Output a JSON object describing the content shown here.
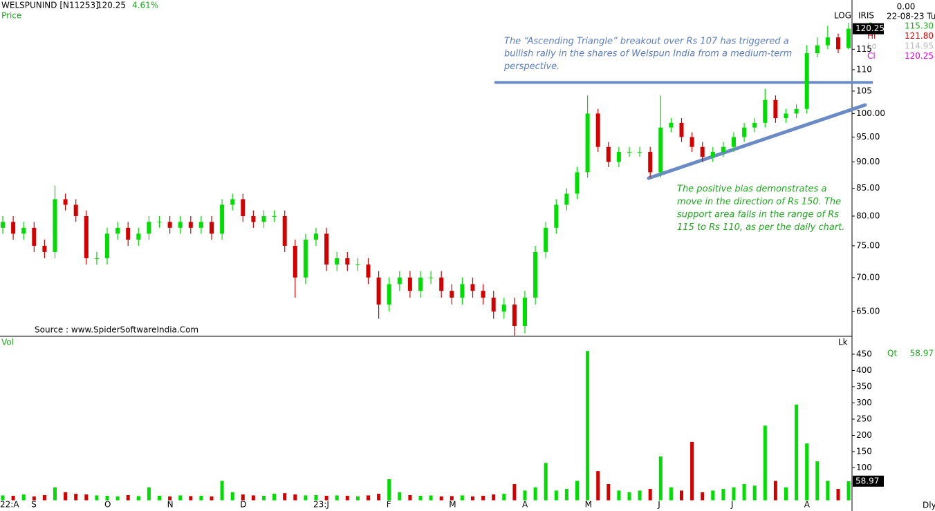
{
  "header": {
    "symbol": "WELSPUNIND [N11253]",
    "last": "120.25",
    "change": "4.61%",
    "panel": "Price",
    "scale": "LOG",
    "indicator": "IRIS",
    "top_value": "0.00",
    "date": "22-08-23 Tu",
    "ohlc": [
      {
        "label": "Op",
        "value": "115.30"
      },
      {
        "label": "Hi",
        "value": "121.80"
      },
      {
        "label": "Lo",
        "value": "114.95"
      },
      {
        "label": "Cl",
        "value": "120.25"
      }
    ]
  },
  "annotations": [
    {
      "lines": [
        "The “Ascending Triangle” breakout over Rs 107 has triggered a",
        "bullish rally in the shares of Welspun India from a medium-term",
        "perspective."
      ]
    },
    {
      "lines": [
        "The positive bias demonstrates a",
        "move in the direction of Rs 150. The",
        "support area falls in the range of Rs",
        "115 to Rs 110, as per the daily chart."
      ]
    }
  ],
  "source": "Source : www.SpiderSoftwareIndia.Com",
  "chart_data": {
    "type": "candlestick",
    "log_scale": true,
    "up_color": "#00dd00",
    "down_color": "#d40000",
    "categories": [
      "22:A",
      null,
      null,
      "S",
      null,
      null,
      null,
      null,
      null,
      null,
      "O",
      null,
      null,
      null,
      null,
      null,
      "N",
      null,
      null,
      null,
      null,
      null,
      null,
      "D",
      null,
      null,
      null,
      null,
      null,
      null,
      "23:J",
      null,
      null,
      null,
      null,
      null,
      null,
      "F",
      null,
      null,
      null,
      null,
      null,
      "M",
      null,
      null,
      null,
      null,
      null,
      null,
      "A",
      null,
      null,
      null,
      null,
      null,
      "M",
      null,
      null,
      null,
      null,
      null,
      null,
      "J",
      null,
      null,
      null,
      null,
      null,
      null,
      "J",
      null,
      null,
      null,
      null,
      null,
      null,
      "A",
      null,
      null,
      null,
      null
    ],
    "open": [
      78,
      79,
      77,
      78,
      75,
      74,
      83,
      82,
      80,
      73,
      73,
      77,
      78,
      76,
      77,
      79,
      79,
      78,
      79,
      78,
      79,
      77,
      82,
      83,
      80,
      79,
      80,
      80,
      75,
      70,
      76,
      77,
      72,
      73,
      72,
      72,
      70,
      66,
      69,
      70,
      68,
      70,
      70,
      68,
      67,
      69,
      68,
      67,
      65,
      66,
      63,
      67,
      74,
      78,
      82,
      84,
      88,
      100,
      93,
      90,
      92,
      92,
      92,
      88,
      97,
      98,
      95,
      93,
      91,
      92,
      93,
      95,
      97,
      98,
      103,
      99,
      100,
      101,
      114,
      116,
      118,
      115.3
    ],
    "high": [
      80,
      80,
      79,
      79,
      76,
      85.5,
      84,
      83,
      81,
      74,
      78,
      79,
      79,
      78,
      80,
      80,
      80,
      80,
      80,
      80,
      80,
      83,
      84,
      84,
      81,
      81,
      81,
      81,
      76,
      77,
      78,
      78,
      74,
      74,
      73,
      73,
      71,
      70,
      71,
      71,
      71,
      71,
      71,
      69,
      70,
      70,
      69,
      68,
      67,
      67,
      68,
      75,
      79,
      83,
      85,
      89,
      104,
      101,
      94,
      93,
      93,
      93,
      93,
      104,
      99,
      99,
      96,
      94,
      93,
      94,
      96,
      98,
      99,
      105.5,
      104,
      101,
      102,
      116,
      118,
      121,
      119,
      121.8
    ],
    "low": [
      77,
      76,
      76,
      74,
      73,
      73,
      81,
      79,
      72,
      72,
      72,
      76,
      75,
      75,
      76,
      78,
      77,
      77,
      77,
      77,
      76,
      76,
      81,
      79,
      78,
      78,
      79,
      74,
      67,
      69,
      75,
      71,
      71,
      71,
      71,
      69,
      64,
      65,
      68,
      67,
      67,
      69,
      67,
      66,
      66,
      67,
      66,
      64,
      64,
      61.7,
      62,
      66,
      73,
      77,
      81,
      83,
      87,
      92,
      89,
      89,
      91,
      91,
      87,
      87,
      96,
      94,
      92,
      90,
      90,
      91,
      92,
      94,
      96,
      97,
      98,
      98,
      99,
      100,
      113,
      115,
      114,
      114.95
    ],
    "close": [
      79,
      77,
      78,
      75,
      74,
      83,
      82,
      80,
      73,
      73,
      77,
      78,
      76,
      77,
      79,
      79,
      78,
      79,
      78,
      79,
      77,
      82,
      83,
      80,
      79,
      80,
      80,
      75,
      70,
      76,
      77,
      72,
      73,
      72,
      72,
      70,
      66,
      69,
      70,
      68,
      70,
      70,
      68,
      67,
      69,
      68,
      67,
      65,
      66,
      63,
      67,
      74,
      78,
      82,
      84,
      88,
      100,
      93,
      90,
      92,
      92,
      92,
      88,
      97,
      98,
      95,
      93,
      91,
      92,
      93,
      95,
      97,
      98,
      103,
      99,
      100,
      101,
      114,
      116,
      118,
      115,
      120.25
    ],
    "volume": [
      15,
      14,
      18,
      12,
      16,
      40,
      25,
      20,
      18,
      15,
      14,
      12,
      16,
      13,
      40,
      14,
      12,
      15,
      13,
      14,
      12,
      60,
      25,
      18,
      15,
      14,
      20,
      22,
      18,
      15,
      16,
      14,
      15,
      14,
      12,
      15,
      20,
      65,
      25,
      16,
      14,
      15,
      12,
      13,
      15,
      12,
      14,
      18,
      20,
      50,
      30,
      40,
      115,
      30,
      35,
      60,
      460,
      90,
      50,
      30,
      25,
      30,
      35,
      135,
      40,
      30,
      180,
      25,
      30,
      35,
      40,
      50,
      45,
      230,
      60,
      40,
      295,
      175,
      120,
      60,
      35,
      58.97
    ],
    "ylim": [
      61.6,
      128
    ],
    "yticks": [
      {
        "value": 65,
        "label": "65.00"
      },
      {
        "value": 70,
        "label": "70.00"
      },
      {
        "value": 75,
        "label": "75.00"
      },
      {
        "value": 80,
        "label": "80.00"
      },
      {
        "value": 85,
        "label": "85.00"
      },
      {
        "value": 90,
        "label": "90.00"
      },
      {
        "value": 95,
        "label": "95.00"
      },
      {
        "value": 100,
        "label": "100.00"
      },
      105,
      110,
      115
    ],
    "resistance": 107,
    "price_tag": "120.25",
    "volume_label": "Vol",
    "volume_unit": "Lk",
    "qt_label": "Qt",
    "qt_value": "58.97",
    "volume_tag": "58.97",
    "vol_ylim": [
      0,
      503
    ],
    "vol_yticks": [
      100,
      150,
      200,
      250,
      300,
      350,
      400,
      450
    ],
    "period": "Dly"
  }
}
